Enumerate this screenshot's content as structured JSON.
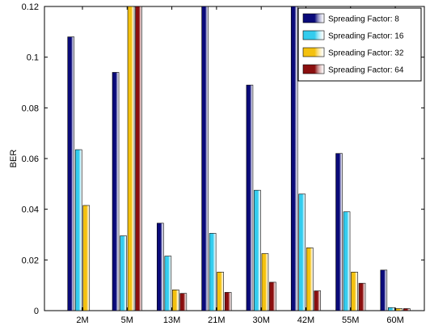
{
  "chart_data": {
    "type": "bar",
    "title": "",
    "xlabel": "",
    "ylabel": "BER",
    "ylim": [
      0,
      0.12
    ],
    "yticks": [
      0,
      0.02,
      0.04,
      0.06,
      0.08,
      0.1,
      0.12
    ],
    "ytick_labels": [
      "0",
      "0.02",
      "0.04",
      "0.06",
      "0.08",
      "0.1",
      "0.12"
    ],
    "grid": false,
    "legend_position": "top-right",
    "categories": [
      "2M",
      "5M",
      "13M",
      "21M",
      "30M",
      "42M",
      "55M",
      "60M"
    ],
    "series": [
      {
        "name": "Spreading Factor: 8",
        "color": "#0a0a7a",
        "values": [
          0.108,
          0.094,
          0.0345,
          0.12,
          0.089,
          0.12,
          0.062,
          0.016
        ]
      },
      {
        "name": "Spreading Factor: 16",
        "color": "#33ccee",
        "values": [
          0.0635,
          0.0295,
          0.0215,
          0.0305,
          0.0475,
          0.046,
          0.039,
          0.0012
        ]
      },
      {
        "name": "Spreading Factor: 32",
        "color": "#f4c10f",
        "values": [
          0.0415,
          0.12,
          0.0082,
          0.0152,
          0.0225,
          0.0248,
          0.0152,
          0.0008
        ]
      },
      {
        "name": "Spreading Factor: 64",
        "color": "#8b0f0f",
        "values": [
          0,
          0.12,
          0.0068,
          0.0072,
          0.0112,
          0.0078,
          0.0108,
          0.0008
        ]
      }
    ]
  }
}
